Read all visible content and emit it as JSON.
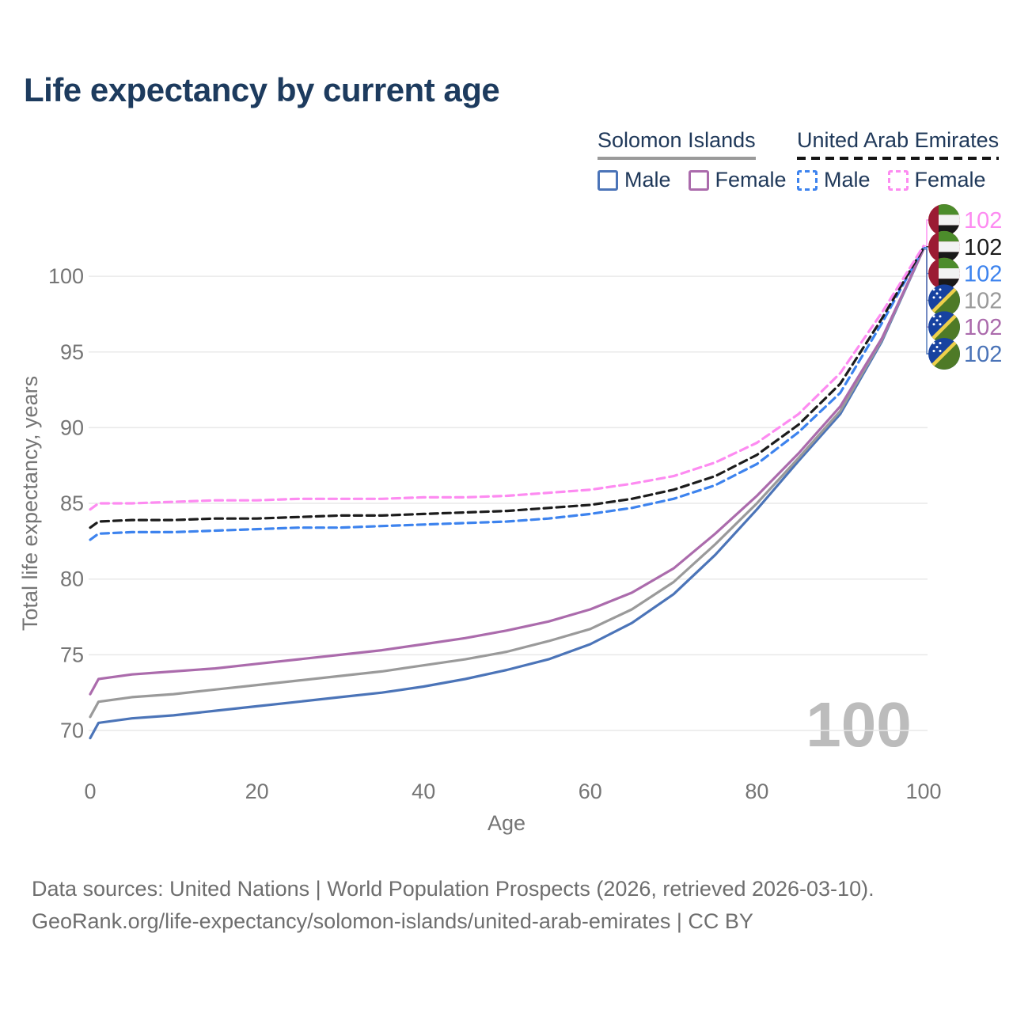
{
  "header": {
    "title": "Life expectancy by current age"
  },
  "legend": {
    "groups": [
      {
        "name": "Solomon Islands",
        "style": "solid",
        "underline_color": "#9a9a9a",
        "items": [
          {
            "label": "Male",
            "color": "#4b74b8"
          },
          {
            "label": "Female",
            "color": "#ab6bac"
          }
        ]
      },
      {
        "name": "United Arab Emirates",
        "style": "dashed",
        "underline_color": "#141414",
        "items": [
          {
            "label": "Male",
            "color": "#3d83ee"
          },
          {
            "label": "Female",
            "color": "#fd8bf1"
          }
        ]
      }
    ]
  },
  "chart_data": {
    "type": "line",
    "title": "Life expectancy by current age",
    "xlabel": "Age",
    "ylabel": "Total life expectancy, years",
    "xlim": [
      0,
      100
    ],
    "ylim": [
      68,
      103
    ],
    "xticks": [
      0,
      20,
      40,
      60,
      80,
      100
    ],
    "yticks": [
      70,
      75,
      80,
      85,
      90,
      95,
      100
    ],
    "grid": "horizontal",
    "legend_position": "top-right",
    "watermark": "100",
    "ages": [
      0,
      1,
      5,
      10,
      15,
      20,
      25,
      30,
      35,
      40,
      45,
      50,
      55,
      60,
      65,
      70,
      75,
      80,
      85,
      90,
      95,
      100
    ],
    "series": [
      {
        "id": "si-male",
        "name": "Solomon Islands Male",
        "country": "Solomon Islands",
        "sex": "Male",
        "color": "#4b74b8",
        "dashed": false,
        "values": [
          69.5,
          70.5,
          70.8,
          71.0,
          71.3,
          71.6,
          71.9,
          72.2,
          72.5,
          72.9,
          73.4,
          74.0,
          74.7,
          75.7,
          77.1,
          79.0,
          81.6,
          84.6,
          87.8,
          90.9,
          95.7,
          101.8
        ]
      },
      {
        "id": "si-all",
        "name": "Solomon Islands",
        "country": "Solomon Islands",
        "sex": "All",
        "color": "#9a9a9a",
        "dashed": false,
        "values": [
          70.9,
          71.9,
          72.2,
          72.4,
          72.7,
          73.0,
          73.3,
          73.6,
          73.9,
          74.3,
          74.7,
          75.2,
          75.9,
          76.7,
          78.0,
          79.8,
          82.3,
          85.0,
          88.0,
          91.1,
          95.8,
          101.8
        ]
      },
      {
        "id": "si-female",
        "name": "Solomon Islands Female",
        "country": "Solomon Islands",
        "sex": "Female",
        "color": "#ab6bac",
        "dashed": false,
        "values": [
          72.4,
          73.4,
          73.7,
          73.9,
          74.1,
          74.4,
          74.7,
          75.0,
          75.3,
          75.7,
          76.1,
          76.6,
          77.2,
          78.0,
          79.1,
          80.7,
          83.0,
          85.5,
          88.3,
          91.4,
          95.9,
          101.8
        ]
      },
      {
        "id": "uae-male",
        "name": "United Arab Emirates Male",
        "country": "United Arab Emirates",
        "sex": "Male",
        "color": "#3d83ee",
        "dashed": true,
        "values": [
          82.6,
          83.0,
          83.1,
          83.1,
          83.2,
          83.3,
          83.4,
          83.4,
          83.5,
          83.6,
          83.7,
          83.8,
          84.0,
          84.3,
          84.7,
          85.3,
          86.2,
          87.6,
          89.7,
          92.3,
          96.9,
          101.9
        ]
      },
      {
        "id": "uae-all",
        "name": "United Arab Emirates",
        "country": "United Arab Emirates",
        "sex": "All",
        "color": "#1c1c1c",
        "dashed": true,
        "values": [
          83.4,
          83.8,
          83.9,
          83.9,
          84.0,
          84.0,
          84.1,
          84.2,
          84.2,
          84.3,
          84.4,
          84.5,
          84.7,
          84.9,
          85.3,
          85.9,
          86.8,
          88.2,
          90.2,
          92.9,
          97.2,
          101.9
        ]
      },
      {
        "id": "uae-female",
        "name": "United Arab Emirates Female",
        "country": "United Arab Emirates",
        "sex": "Female",
        "color": "#fd8bf1",
        "dashed": true,
        "values": [
          84.6,
          85.0,
          85.0,
          85.1,
          85.2,
          85.2,
          85.3,
          85.3,
          85.3,
          85.4,
          85.4,
          85.5,
          85.7,
          85.9,
          86.3,
          86.8,
          87.7,
          89.0,
          90.9,
          93.6,
          97.6,
          102.0
        ]
      }
    ],
    "end_labels": [
      {
        "series": "uae-female",
        "flag": "uae",
        "value": "102"
      },
      {
        "series": "uae-all",
        "flag": "uae",
        "value": "102"
      },
      {
        "series": "uae-male",
        "flag": "uae",
        "value": "102"
      },
      {
        "series": "si-all",
        "flag": "si",
        "value": "102"
      },
      {
        "series": "si-female",
        "flag": "si",
        "value": "102"
      },
      {
        "series": "si-male",
        "flag": "si",
        "value": "102"
      }
    ]
  },
  "footer": {
    "line1": "Data sources: United Nations | World Population Prospects (2026, retrieved 2026-03-10).",
    "line2": "GeoRank.org/life-expectancy/solomon-islands/united-arab-emirates | CC BY"
  }
}
